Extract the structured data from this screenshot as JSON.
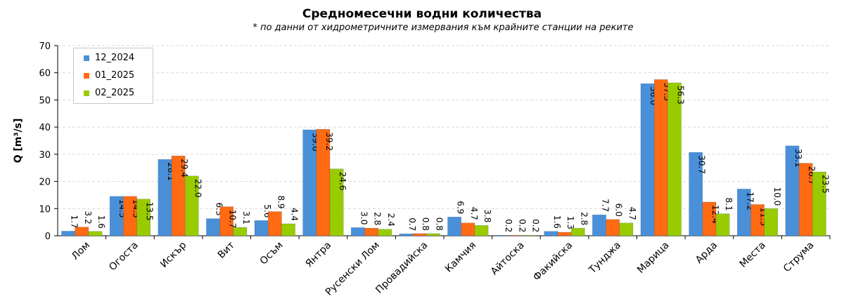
{
  "chart_data": {
    "type": "bar",
    "title": "Средномесечни водни количества",
    "subtitle": "* по данни от хидрометричните измервания към крайните станции на реките",
    "ylabel": "Q [m³/s]",
    "xlabel": "",
    "ylim": [
      0,
      70
    ],
    "yticks": [
      0,
      10,
      20,
      30,
      40,
      50,
      60,
      70
    ],
    "grid": true,
    "legend_position": "top-left",
    "categories": [
      "Лом",
      "Огоста",
      "Искър",
      "Вит",
      "Осъм",
      "Янтра",
      "Русенски Лом",
      "Провадийска",
      "Камчия",
      "Айтоска",
      "Факийска",
      "Тунджа",
      "Марица",
      "Арда",
      "Места",
      "Струма"
    ],
    "series": [
      {
        "name": "12_2024",
        "color": "#4a90d9",
        "values": [
          1.7,
          14.5,
          28.1,
          6.3,
          5.6,
          39.0,
          3.0,
          0.7,
          6.9,
          0.2,
          1.6,
          7.7,
          56.0,
          30.7,
          17.2,
          33.1
        ]
      },
      {
        "name": "01_2025",
        "color": "#ff6a13",
        "values": [
          3.2,
          14.5,
          29.4,
          10.7,
          8.9,
          39.2,
          2.8,
          0.8,
          4.7,
          0.2,
          1.3,
          6.0,
          57.5,
          12.4,
          11.5,
          26.7
        ]
      },
      {
        "name": "02_2025",
        "color": "#99cc00",
        "values": [
          1.6,
          13.5,
          22.0,
          3.1,
          4.4,
          24.6,
          2.4,
          0.8,
          3.8,
          0.2,
          2.8,
          4.7,
          56.3,
          8.1,
          10.0,
          23.5
        ]
      }
    ]
  }
}
